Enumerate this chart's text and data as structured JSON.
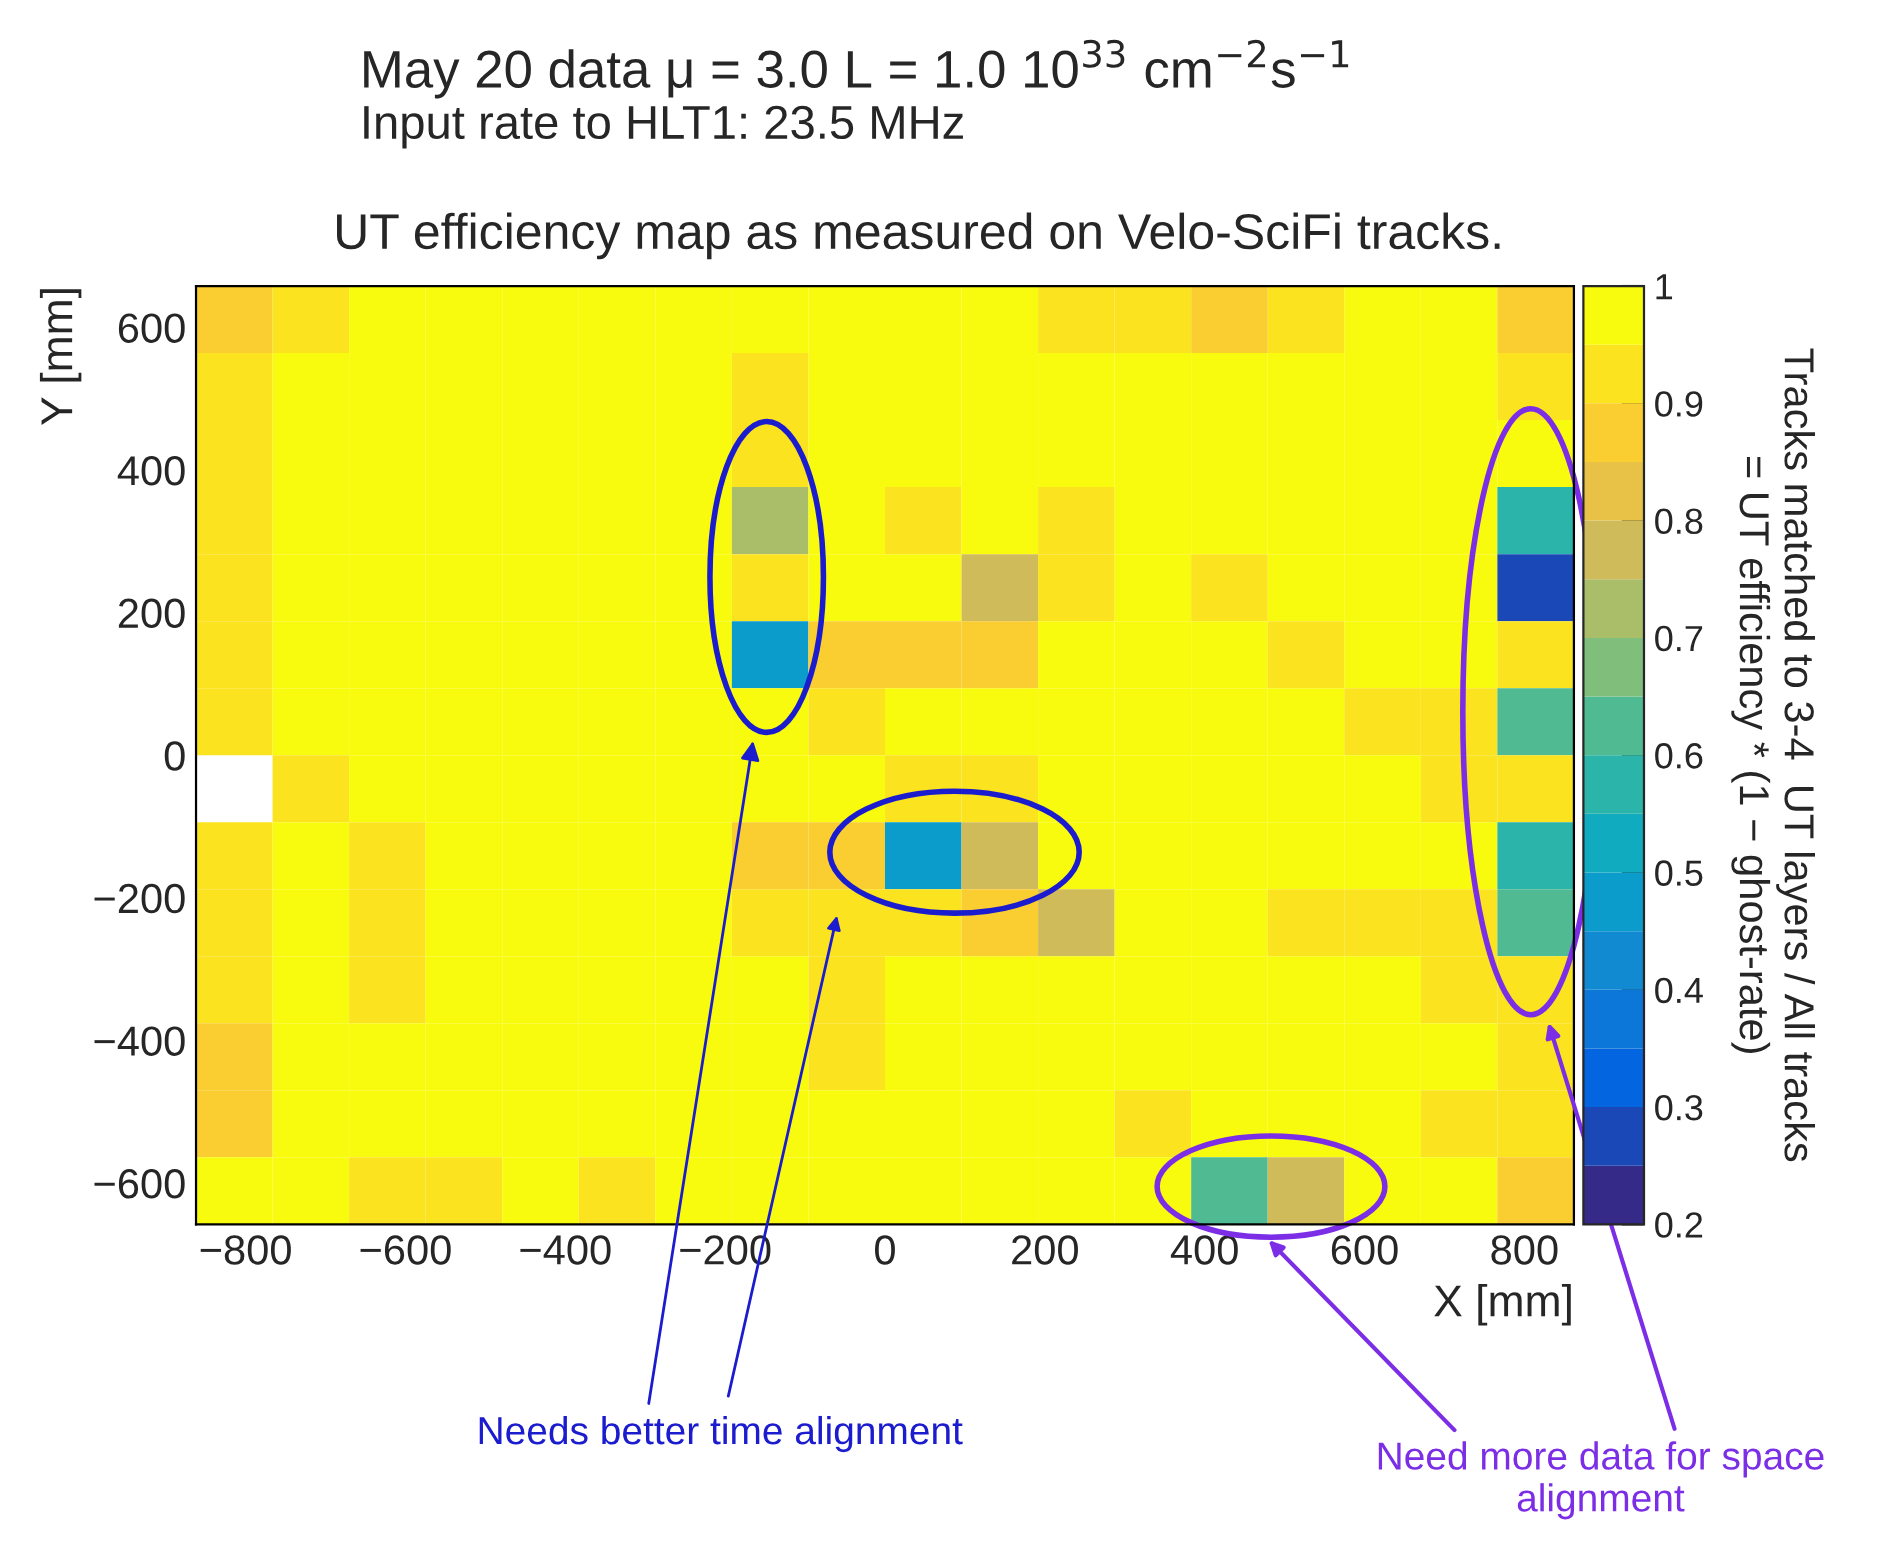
{
  "chart_data": {
    "type": "heatmap",
    "title": "May 20 data μ = 3.0 L = 1.0 10$^{33}$ cm$^{−2}$s$^{−1}$",
    "subtitle": "Input rate to HLT1: 23.5 MHz",
    "xlabel": "X [mm]",
    "ylabel": "Y [mm]",
    "clabel": "Tracks matched to 3-4  UT layers / All tracks\n= UT efficiency * (1 − ghost-rate)",
    "annotations": [
      "UT efficiency map as measured on Velo-SciFi tracks.",
      "Needs better time alignment",
      "Need more data for space alignment"
    ],
    "xlim": [
      -862,
      862
    ],
    "ylim": [
      -658,
      658
    ],
    "xticks": [
      {
        "value": -800,
        "label": "−800"
      },
      {
        "value": -600,
        "label": "−600"
      },
      {
        "value": -400,
        "label": "−400"
      },
      {
        "value": -200,
        "label": "−200"
      },
      0,
      200,
      400,
      600,
      800
    ],
    "yticks": [
      {
        "value": -600,
        "label": "−600"
      },
      {
        "value": -400,
        "label": "−400"
      },
      {
        "value": -200,
        "label": "−200"
      },
      0,
      200,
      400,
      600
    ],
    "clim": [
      0.2,
      1
    ],
    "cticks": [
      0.2,
      0.3,
      0.4,
      0.5,
      0.6,
      0.7,
      0.8,
      0.9,
      1
    ],
    "cells": [
      [
        0.86,
        0.91,
        0.95,
        0.95,
        0.95,
        0.95,
        0.98,
        0.98,
        0.98,
        0.98,
        0.95,
        0.91,
        0.91,
        0.86,
        0.91,
        0.95,
        0.95,
        0.88
      ],
      [
        0.91,
        0.95,
        0.95,
        0.98,
        0.95,
        0.95,
        0.98,
        0.91,
        0.98,
        0.98,
        0.95,
        0.95,
        0.95,
        0.95,
        0.98,
        0.98,
        0.95,
        0.91
      ],
      [
        0.91,
        0.95,
        0.95,
        0.95,
        0.95,
        0.95,
        0.95,
        0.91,
        0.95,
        0.95,
        0.95,
        0.95,
        0.95,
        0.95,
        0.98,
        0.98,
        0.95,
        0.95
      ],
      [
        0.91,
        0.95,
        0.95,
        0.95,
        0.95,
        0.95,
        0.95,
        0.72,
        0.95,
        0.91,
        0.95,
        0.91,
        0.95,
        0.98,
        0.95,
        0.95,
        0.95,
        0.6
      ],
      [
        0.91,
        0.95,
        0.95,
        0.95,
        0.95,
        0.95,
        0.95,
        0.91,
        0.95,
        0.95,
        0.77,
        0.91,
        0.98,
        0.91,
        0.95,
        0.95,
        0.95,
        0.3
      ],
      [
        0.91,
        0.95,
        0.95,
        0.95,
        0.95,
        0.95,
        0.98,
        0.47,
        0.86,
        0.86,
        0.86,
        0.98,
        0.98,
        0.95,
        0.91,
        0.95,
        0.95,
        0.91
      ],
      [
        0.91,
        0.95,
        0.95,
        0.95,
        0.95,
        0.98,
        0.95,
        0.98,
        0.91,
        0.95,
        0.95,
        0.98,
        0.98,
        0.95,
        0.95,
        0.91,
        0.91,
        0.62
      ],
      [
        null,
        0.91,
        0.95,
        0.95,
        0.95,
        0.95,
        0.98,
        0.95,
        0.95,
        0.91,
        0.91,
        0.98,
        0.98,
        0.95,
        0.95,
        0.95,
        0.91,
        0.91
      ],
      [
        0.91,
        0.95,
        0.91,
        0.95,
        0.95,
        0.98,
        0.98,
        0.86,
        0.86,
        0.48,
        0.75,
        0.98,
        0.98,
        0.95,
        0.95,
        0.95,
        0.95,
        0.58
      ],
      [
        0.91,
        0.95,
        0.91,
        0.95,
        0.95,
        0.98,
        0.95,
        0.91,
        0.91,
        0.91,
        0.86,
        0.77,
        0.95,
        0.95,
        0.91,
        0.91,
        0.91,
        0.63
      ],
      [
        0.91,
        0.95,
        0.91,
        0.95,
        0.98,
        0.95,
        0.95,
        0.95,
        0.91,
        0.95,
        0.95,
        0.95,
        0.95,
        0.95,
        0.95,
        0.95,
        0.91,
        0.91
      ],
      [
        0.88,
        0.95,
        0.95,
        0.95,
        0.95,
        0.95,
        0.95,
        0.95,
        0.91,
        0.95,
        0.95,
        0.95,
        0.95,
        0.95,
        0.95,
        0.95,
        0.95,
        0.91
      ],
      [
        0.86,
        0.98,
        0.95,
        0.95,
        0.95,
        0.95,
        0.95,
        0.95,
        0.95,
        0.98,
        0.98,
        0.95,
        0.91,
        0.95,
        0.95,
        0.95,
        0.91,
        0.91
      ],
      [
        0.95,
        0.95,
        0.91,
        0.91,
        0.95,
        0.91,
        0.95,
        0.95,
        0.95,
        0.95,
        0.95,
        0.95,
        0.95,
        0.62,
        0.77,
        0.95,
        0.95,
        0.86
      ]
    ]
  }
}
